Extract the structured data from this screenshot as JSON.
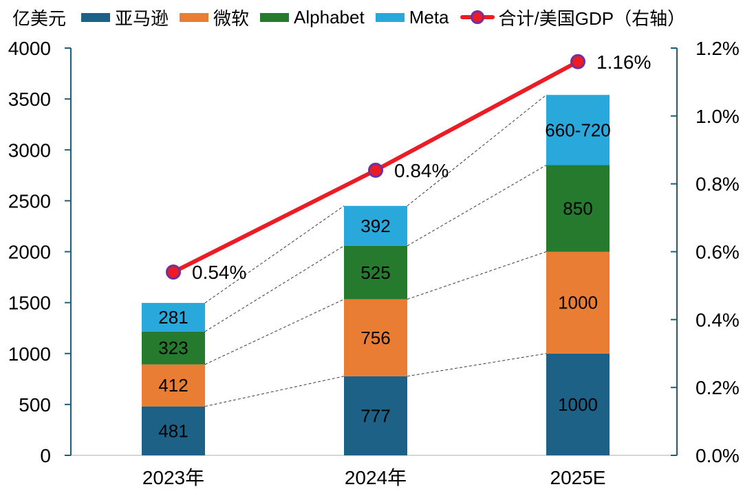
{
  "unit_label": "亿美元",
  "legend": {
    "items": [
      {
        "label": "亚马逊",
        "color": "#1D6186",
        "type": "swatch"
      },
      {
        "label": "微软",
        "color": "#E97D33",
        "type": "swatch"
      },
      {
        "label": "Alphabet",
        "color": "#267A2E",
        "type": "swatch"
      },
      {
        "label": "Meta",
        "color": "#29A8DC",
        "type": "swatch"
      },
      {
        "label": "合计/美国GDP（右轴）",
        "color": "#EC1C24",
        "type": "line-marker"
      }
    ]
  },
  "chart_data": {
    "type": "stacked-bar-with-line",
    "title": "",
    "categories": [
      "2023年",
      "2024年",
      "2025E"
    ],
    "series": [
      {
        "name": "亚马逊",
        "color": "#1D6186",
        "values": [
          481,
          777,
          1000
        ],
        "labels": [
          "481",
          "777",
          "1000"
        ]
      },
      {
        "name": "微软",
        "color": "#E97D33",
        "values": [
          412,
          756,
          1000
        ],
        "labels": [
          "412",
          "756",
          "1000"
        ]
      },
      {
        "name": "Alphabet",
        "color": "#267A2E",
        "values": [
          323,
          525,
          850
        ],
        "labels": [
          "323",
          "525",
          "850"
        ]
      },
      {
        "name": "Meta",
        "color": "#29A8DC",
        "values": [
          281,
          392,
          690
        ],
        "labels": [
          "281",
          "392",
          "660-720"
        ]
      }
    ],
    "totals": [
      1497,
      2450,
      3540
    ],
    "line_series": {
      "name": "合计/美国GDP（右轴）",
      "color": "#EC1C24",
      "marker_border": "#7030A0",
      "values_pct": [
        0.54,
        0.84,
        1.16
      ],
      "labels": [
        "0.54%",
        "0.84%",
        "1.16%"
      ]
    },
    "left_axis": {
      "unit": "亿美元",
      "min": 0,
      "max": 4000,
      "ticks": [
        0,
        500,
        1000,
        1500,
        2000,
        2500,
        3000,
        3500,
        4000
      ]
    },
    "right_axis": {
      "min": 0,
      "max": 1.2,
      "tick_labels": [
        "0.0%",
        "0.2%",
        "0.4%",
        "0.6%",
        "0.8%",
        "1.0%",
        "1.2%"
      ]
    },
    "connector_lines": true,
    "grid": false,
    "legend_position": "top"
  },
  "colors": {
    "axis": "#1C5F74",
    "baseline": "#D6D6D6",
    "connector": "#3A3A3A"
  }
}
